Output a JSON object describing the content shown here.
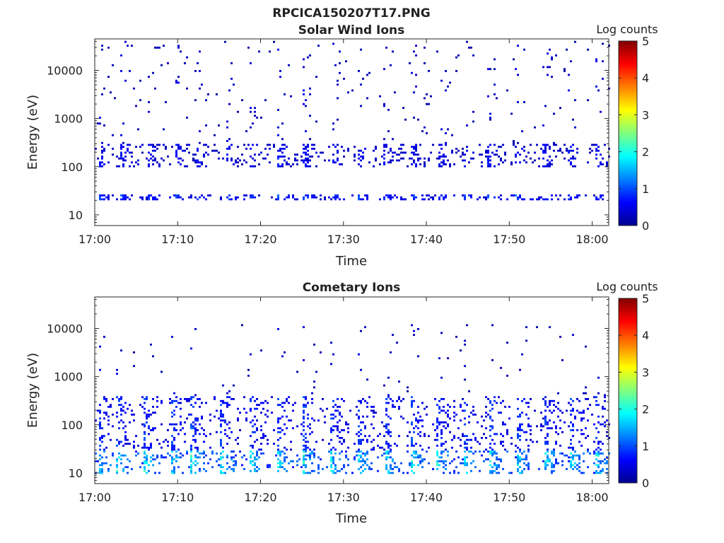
{
  "figure_title": "RPCICA150207T17.PNG",
  "colorscale": {
    "label": "Log counts",
    "ticks": [
      "0",
      "1",
      "2",
      "3",
      "4",
      "5"
    ]
  },
  "chart_data": [
    {
      "type": "heatmap",
      "title": "Solar Wind Ions",
      "xlabel": "Time",
      "ylabel": "Energy (eV)",
      "x_tick_labels": [
        "17:00",
        "17:10",
        "17:20",
        "17:30",
        "17:40",
        "17:50",
        "18:00"
      ],
      "x_tick_minutes": [
        0,
        10,
        20,
        30,
        40,
        50,
        60
      ],
      "xlim_minutes": [
        0,
        62
      ],
      "y_scale": "log",
      "y_tick_labels": [
        "10",
        "100",
        "1000",
        "10000"
      ],
      "y_tick_values": [
        10,
        100,
        1000,
        10000
      ],
      "ylim": [
        6,
        45000
      ],
      "z_label": "Log counts",
      "z_range": [
        0,
        5
      ],
      "scan_period_minutes": 3.25,
      "scan_start_minutes": [
        0.3,
        3.0,
        6.2,
        9.6,
        12.2,
        15.7,
        18.5,
        22.0,
        25.0,
        28.5,
        31.5,
        34.7,
        38.0,
        41.2,
        44.3,
        47.3,
        50.5,
        53.8,
        57.0,
        60.3
      ],
      "bands": [
        {
          "energy_min": 20,
          "energy_max": 27,
          "log_counts": 1.0,
          "description": "low-energy band"
        },
        {
          "energy_min": 100,
          "energy_max": 300,
          "log_counts": 0.7,
          "description": "solar wind band"
        },
        {
          "energy_min": 300,
          "energy_max": 40000,
          "log_counts": 0.5,
          "description": "sparse high-energy counts"
        }
      ]
    },
    {
      "type": "heatmap",
      "title": "Cometary Ions",
      "xlabel": "Time",
      "ylabel": "Energy (eV)",
      "x_tick_labels": [
        "17:00",
        "17:10",
        "17:20",
        "17:30",
        "17:40",
        "17:50",
        "18:00"
      ],
      "x_tick_minutes": [
        0,
        10,
        20,
        30,
        40,
        50,
        60
      ],
      "xlim_minutes": [
        0,
        62
      ],
      "y_scale": "log",
      "y_tick_labels": [
        "10",
        "100",
        "1000",
        "10000"
      ],
      "y_tick_values": [
        10,
        100,
        1000,
        10000
      ],
      "ylim": [
        6,
        45000
      ],
      "z_label": "Log counts",
      "z_range": [
        0,
        5
      ],
      "scan_period_minutes": 3.25,
      "scan_start_minutes": [
        0.3,
        2.5,
        5.8,
        9.0,
        11.5,
        15.0,
        18.5,
        21.8,
        25.0,
        28.2,
        31.5,
        34.8,
        38.0,
        41.0,
        44.3,
        47.5,
        50.7,
        54.0,
        57.2,
        60.2
      ],
      "bands": [
        {
          "energy_min": 10,
          "energy_max": 30,
          "log_counts": 2.0,
          "description": "low-energy cometary peak"
        },
        {
          "energy_min": 30,
          "energy_max": 400,
          "log_counts": 1.0,
          "description": "main cometary population"
        },
        {
          "energy_min": 400,
          "energy_max": 12000,
          "log_counts": 0.5,
          "description": "sparse high-energy counts"
        }
      ]
    }
  ]
}
